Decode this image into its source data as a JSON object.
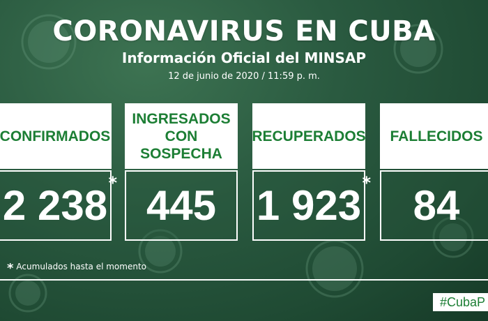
{
  "header": {
    "title": "CORONAVIRUS EN CUBA",
    "subtitle": "Información Oficial del MINSAP",
    "date": "12 de junio de 2020 / 11:59 p. m."
  },
  "cards": [
    {
      "label": "CONFIRMADOS",
      "value": "2 238",
      "asterisk": "*"
    },
    {
      "label": "INGRESADOS\nCON SOSPECHA",
      "value": "445",
      "asterisk": ""
    },
    {
      "label": "RECUPERADOS",
      "value": "1 923",
      "asterisk": "*"
    },
    {
      "label": "FALLECIDOS",
      "value": "84",
      "asterisk": "*"
    }
  ],
  "footnote": {
    "star": "*",
    "text": "Acumulados hasta el momento"
  },
  "hashtag": "#CubaP",
  "colors": {
    "background": "#2a5a40",
    "accent_green": "#1c7e34",
    "card_label_bg": "#ffffff"
  }
}
